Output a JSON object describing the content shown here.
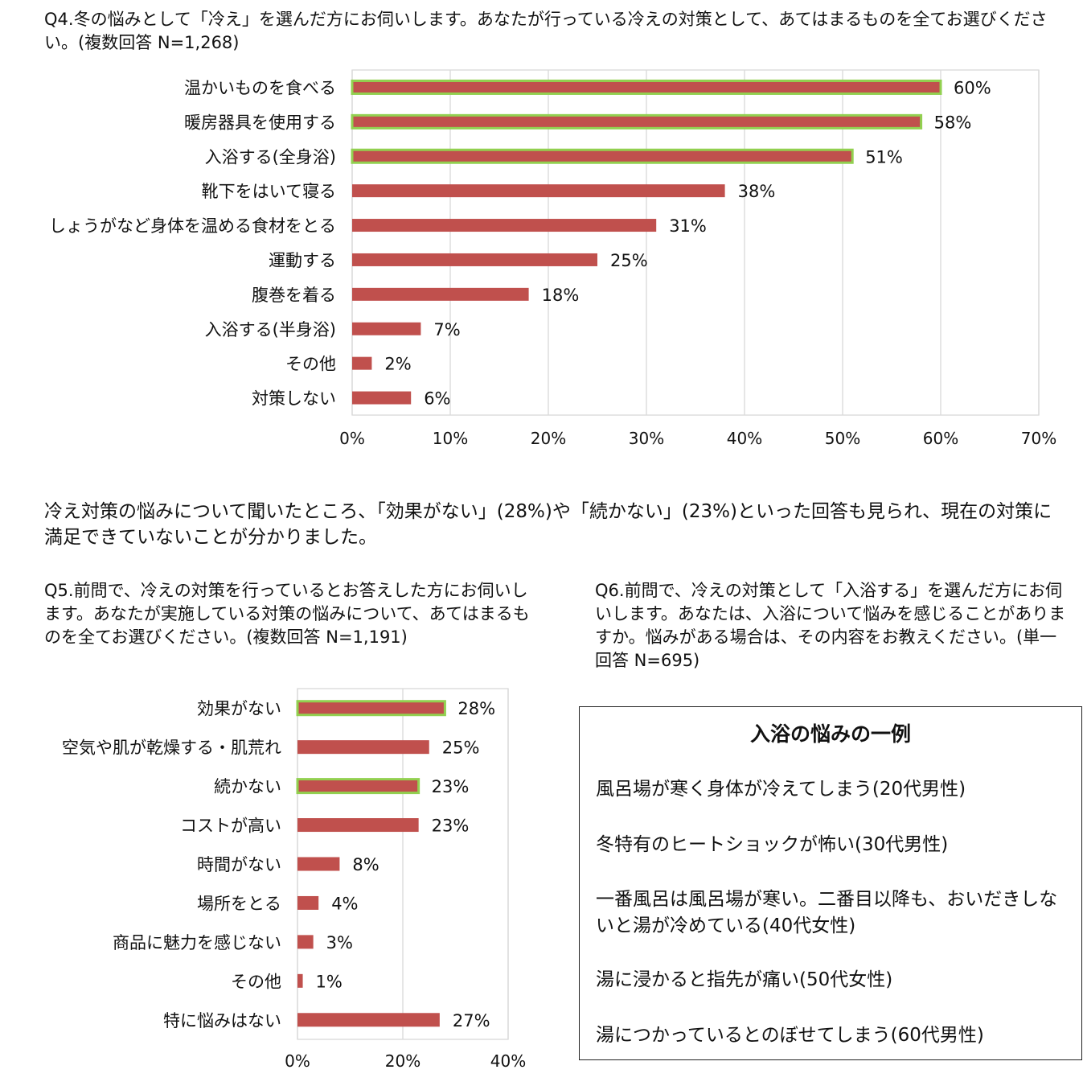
{
  "q4": {
    "question": "Q4.冬の悩みとして「冷え」を選んだ方にお伺いします。あなたが行っている冷えの対策として、あてはまるものを全てお選びください。(複数回答 N=1,268)"
  },
  "summary_text": "冷え対策の悩みについて聞いたところ、「効果がない」(28%)や「続かない」(23%)といった回答も見られ、現在の対策に満足できていないことが分かりました。",
  "q5": {
    "question": "Q5.前問で、冷えの対策を行っているとお答えした方にお伺いします。あなたが実施している対策の悩みについて、あてはまるものを全てお選びください。(複数回答 N=1,191)"
  },
  "q6": {
    "question": "Q6.前問で、冷えの対策として「入浴する」を選んだ方にお伺いします。あなたは、入浴について悩みを感じることがありますか。悩みがある場合は、その内容をお教えください。(単一回答 N=695)",
    "box_title": "入浴の悩みの一例",
    "voices": [
      "風呂場が寒く身体が冷えてしまう(20代男性)",
      "冬特有のヒートショックが怖い(30代男性)",
      "一番風呂は風呂場が寒い。二番目以降も、おいだきしないと湯が冷めている(40代女性)",
      "湯に浸かると指先が痛い(50代女性)",
      "湯につかっているとのぼせてしまう(60代男性)"
    ]
  },
  "colors": {
    "bar": "#c0504d",
    "highlight_border": "#92d050",
    "grid": "#d9d9d9",
    "frame": "#d9d9d9"
  },
  "chart_data": [
    {
      "type": "bar",
      "orientation": "horizontal",
      "id": "q4-chart",
      "categories": [
        "温かいものを食べる",
        "暖房器具を使用する",
        "入浴する(全身浴)",
        "靴下をはいて寝る",
        "しょうがなど身体を温める食材をとる",
        "運動する",
        "腹巻を着る",
        "入浴する(半身浴)",
        "その他",
        "対策しない"
      ],
      "values": [
        60,
        58,
        51,
        38,
        31,
        25,
        18,
        7,
        2,
        6
      ],
      "labels": [
        "60%",
        "58%",
        "51%",
        "38%",
        "31%",
        "25%",
        "18%",
        "7%",
        "2%",
        "6%"
      ],
      "highlighted": [
        true,
        true,
        true,
        false,
        false,
        false,
        false,
        false,
        false,
        false
      ],
      "xlim": [
        0,
        70
      ],
      "xticks": [
        "0%",
        "10%",
        "20%",
        "30%",
        "40%",
        "50%",
        "60%",
        "70%"
      ],
      "grid": true
    },
    {
      "type": "bar",
      "orientation": "horizontal",
      "id": "q5-chart",
      "categories": [
        "効果がない",
        "空気や肌が乾燥する・肌荒れ",
        "続かない",
        "コストが高い",
        "時間がない",
        "場所をとる",
        "商品に魅力を感じない",
        "その他",
        "特に悩みはない"
      ],
      "values": [
        28,
        25,
        23,
        23,
        8,
        4,
        3,
        1,
        27
      ],
      "labels": [
        "28%",
        "25%",
        "23%",
        "23%",
        "8%",
        "4%",
        "3%",
        "1%",
        "27%"
      ],
      "highlighted": [
        true,
        false,
        true,
        false,
        false,
        false,
        false,
        false,
        false
      ],
      "xlim": [
        0,
        40
      ],
      "xticks": [
        "0%",
        "20%",
        "40%"
      ],
      "grid": true
    }
  ]
}
